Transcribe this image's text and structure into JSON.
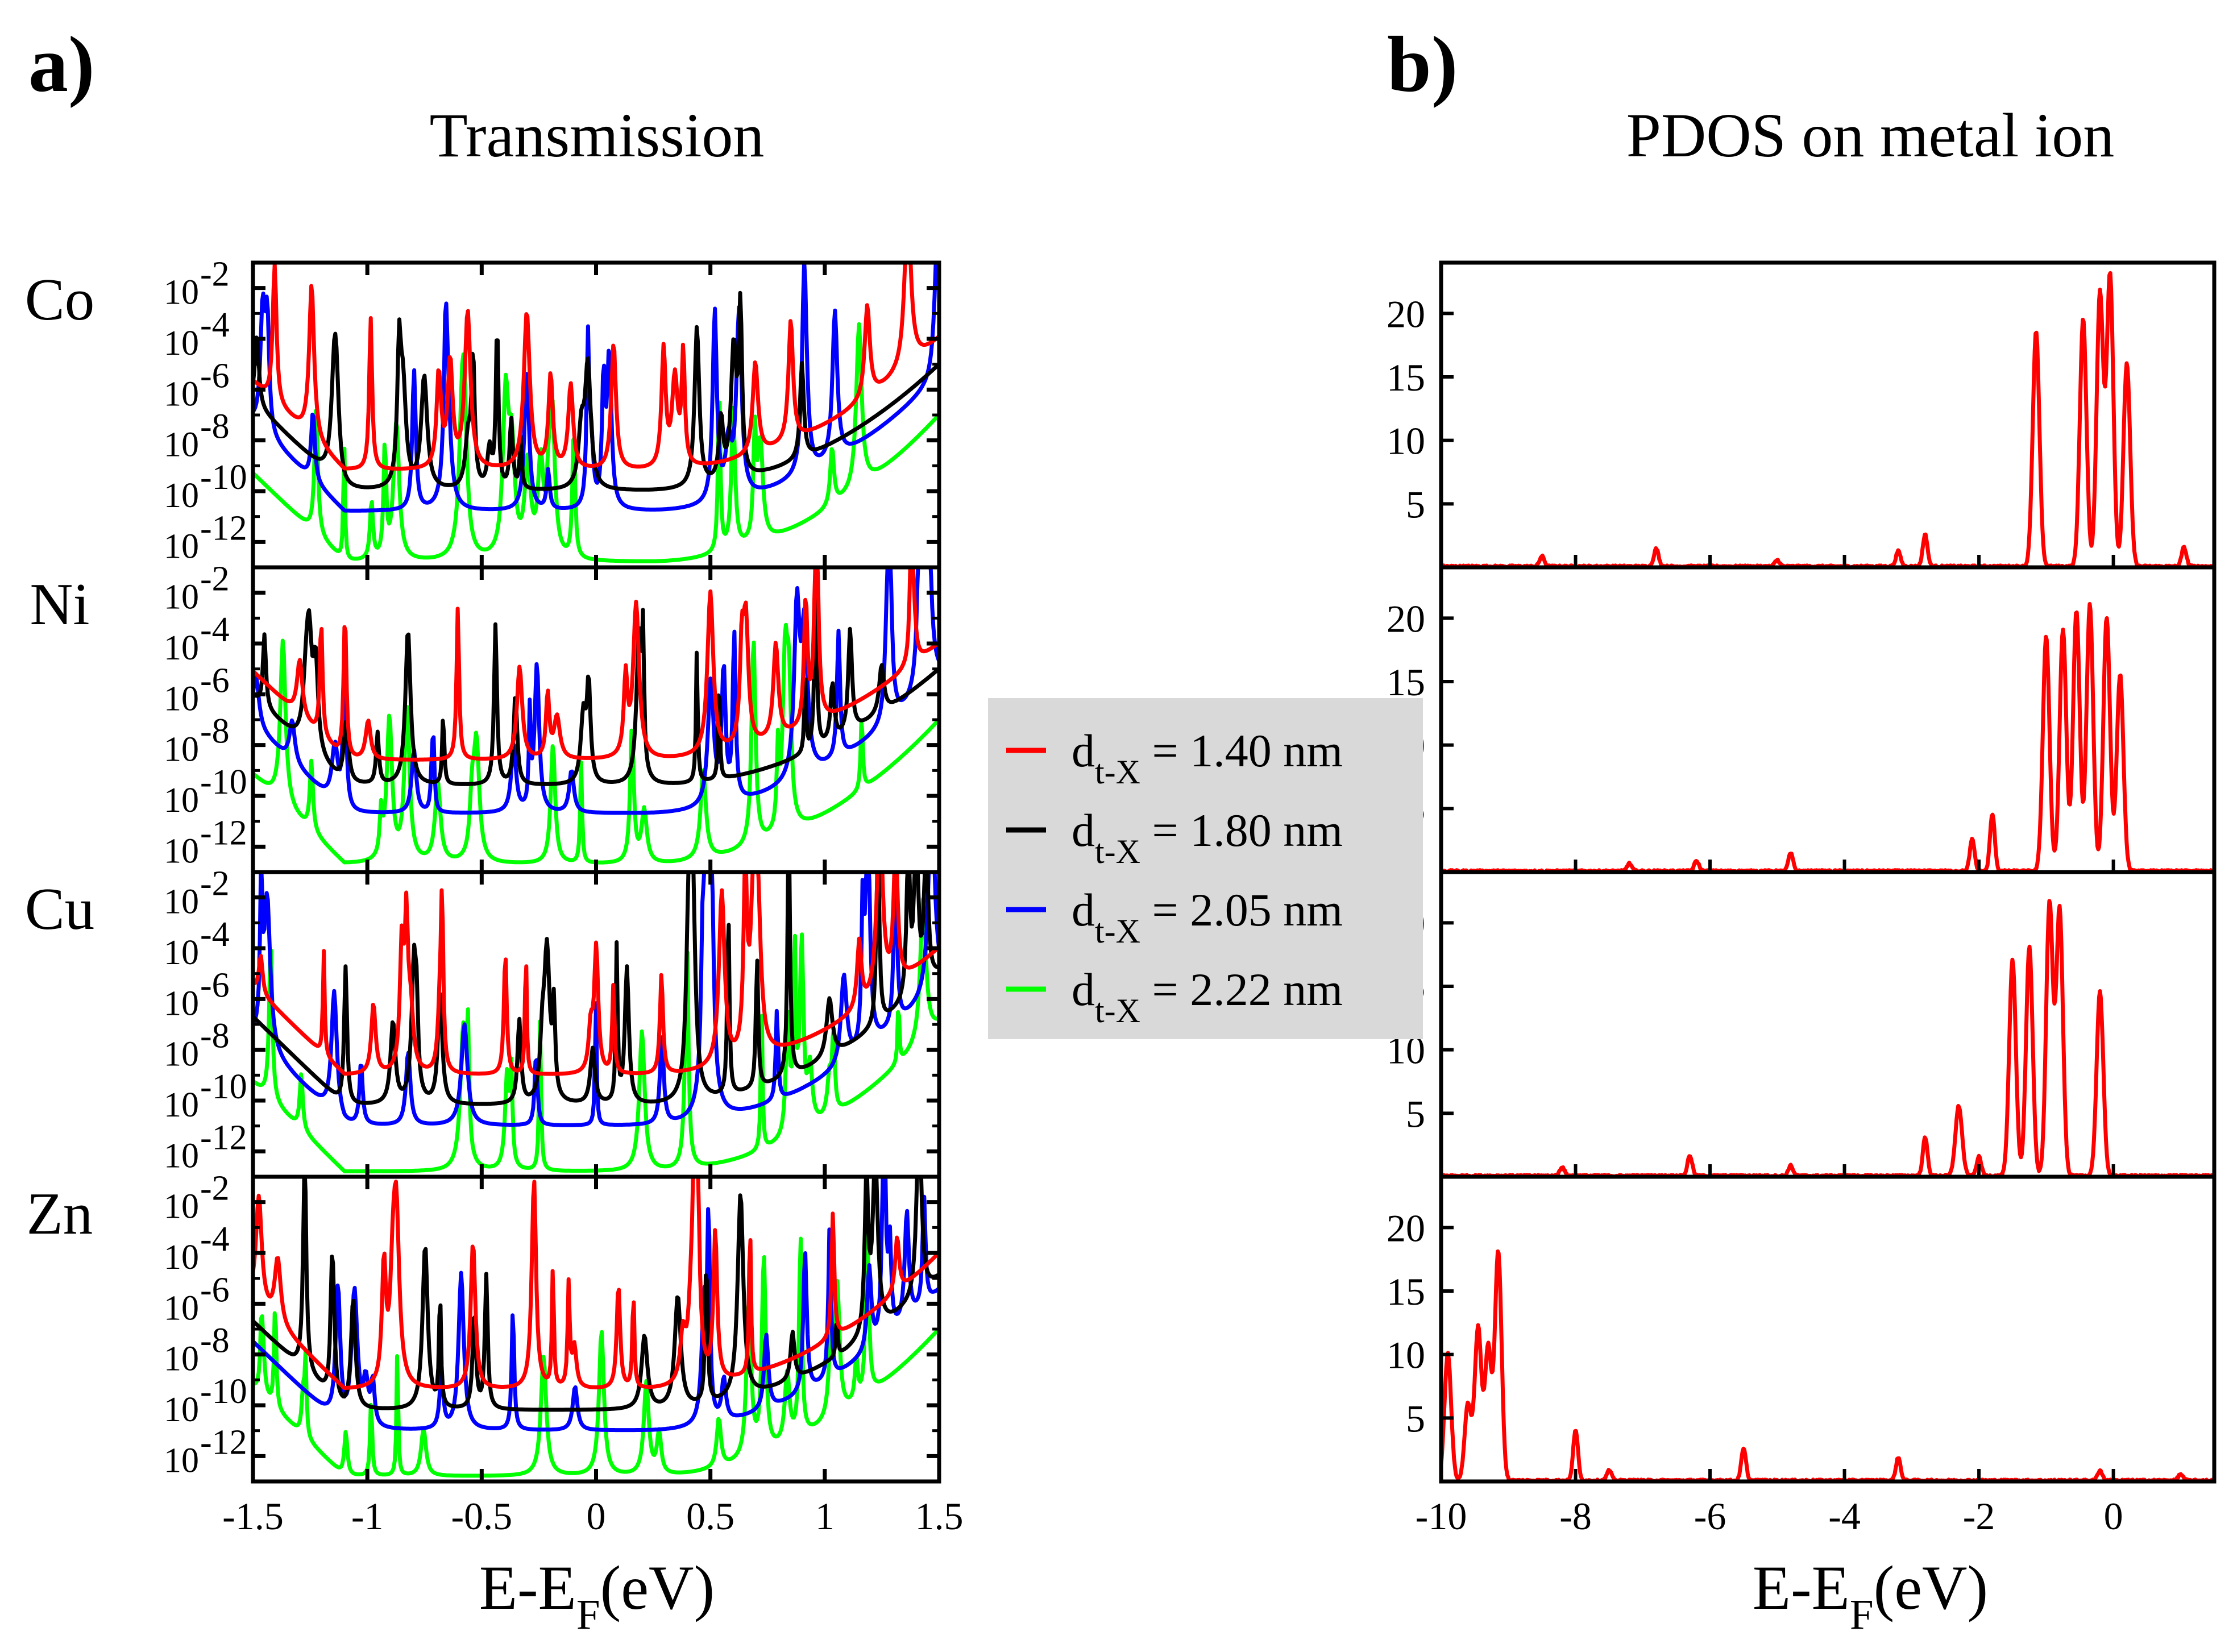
{
  "panel_labels": {
    "a": "a)",
    "b": "b)"
  },
  "chart_data": [
    {
      "type": "line",
      "panel": "a)",
      "title": "Transmission",
      "xlabel": "E-EF(eV)",
      "xlabel_parts": {
        "base": "E-E",
        "sub": "F",
        "tail": "(eV)"
      },
      "ylabel": "",
      "yscale": "log",
      "xlim": [
        -1.5,
        1.5
      ],
      "ylim_exponent": [
        -13,
        -1
      ],
      "x_ticks": [
        "-1.5",
        "-1",
        "-0.5",
        "0",
        "0.5",
        "1",
        "1.5"
      ],
      "y_tick_base": "10",
      "y_tick_exponents": [
        "-2",
        "-4",
        "-6",
        "-8",
        "-10",
        "-12"
      ],
      "rows": [
        "Co",
        "Ni",
        "Cu",
        "Zn"
      ],
      "series": [
        {
          "name": "d t-X = 1.40 nm",
          "color": "#ff0000",
          "baseline_exponent": {
            "Co": -9.2,
            "Ni": -8.6,
            "Cu": -9.0,
            "Zn": -9.4
          },
          "right_end_exponent": -4.0
        },
        {
          "name": "d t-X = 1.80 nm",
          "color": "#000000",
          "baseline_exponent": {
            "Co": -10.0,
            "Ni": -9.6,
            "Cu": -10.2,
            "Zn": -10.2
          },
          "right_end_exponent": -5.0
        },
        {
          "name": "d t-X = 2.05 nm",
          "color": "#0000ff",
          "baseline_exponent": {
            "Co": -10.8,
            "Ni": -10.7,
            "Cu": -11.0,
            "Zn": -11.0
          },
          "right_end_exponent": -5.5
        },
        {
          "name": "d t-X = 2.22 nm",
          "color": "#00ff00",
          "baseline_exponent": {
            "Co": -12.8,
            "Ni": -12.7,
            "Cu": -12.8,
            "Zn": -12.8
          },
          "right_end_exponent": -7.0
        }
      ]
    },
    {
      "type": "line",
      "panel": "b)",
      "title": "PDOS on metal ion",
      "xlabel": "E-EF(eV)",
      "xlabel_parts": {
        "base": "E-E",
        "sub": "F",
        "tail": "(eV)"
      },
      "ylabel": "",
      "xlim": [
        -10,
        1.5
      ],
      "ylim": [
        0,
        24
      ],
      "x_ticks": [
        "-10",
        "-8",
        "-6",
        "-4",
        "-2",
        "0"
      ],
      "y_ticks": [
        "5",
        "10",
        "15",
        "20"
      ],
      "rows": [
        "Co",
        "Ni",
        "Cu",
        "Zn"
      ],
      "series": [
        {
          "name": "Co",
          "color": "#ff0000",
          "peaks": [
            [
              -8.5,
              0.8
            ],
            [
              -6.8,
              1.4
            ],
            [
              -5.0,
              0.5
            ],
            [
              -3.2,
              1.2
            ],
            [
              -2.8,
              2.5
            ],
            [
              -1.15,
              18.5
            ],
            [
              -0.45,
              19.5
            ],
            [
              -0.2,
              21.5
            ],
            [
              -0.05,
              23.0
            ],
            [
              0.2,
              16.0
            ],
            [
              1.05,
              1.5
            ]
          ]
        },
        {
          "name": "Ni",
          "color": "#ff0000",
          "peaks": [
            [
              -7.2,
              0.6
            ],
            [
              -6.2,
              0.8
            ],
            [
              -4.8,
              1.4
            ],
            [
              -2.1,
              2.5
            ],
            [
              -1.8,
              4.5
            ],
            [
              -1.0,
              18.5
            ],
            [
              -0.75,
              19.0
            ],
            [
              -0.55,
              20.5
            ],
            [
              -0.35,
              21.0
            ],
            [
              -0.1,
              20.0
            ],
            [
              0.1,
              15.5
            ]
          ]
        },
        {
          "name": "Cu",
          "color": "#ff0000",
          "peaks": [
            [
              -8.2,
              0.7
            ],
            [
              -6.3,
              1.6
            ],
            [
              -4.8,
              0.8
            ],
            [
              -2.8,
              3.0
            ],
            [
              -2.3,
              5.5
            ],
            [
              -2.0,
              1.5
            ],
            [
              -1.5,
              17.0
            ],
            [
              -1.25,
              18.0
            ],
            [
              -0.95,
              21.5
            ],
            [
              -0.8,
              21.0
            ],
            [
              -0.2,
              14.5
            ]
          ]
        },
        {
          "name": "Zn",
          "color": "#ff0000",
          "peaks": [
            [
              -9.9,
              10.0
            ],
            [
              -9.6,
              6.0
            ],
            [
              -9.45,
              12.0
            ],
            [
              -9.3,
              10.5
            ],
            [
              -9.15,
              18.0
            ],
            [
              -8.0,
              4.0
            ],
            [
              -7.5,
              0.8
            ],
            [
              -5.5,
              2.5
            ],
            [
              -3.2,
              1.8
            ],
            [
              -0.2,
              0.8
            ],
            [
              1.0,
              0.5
            ]
          ]
        }
      ]
    }
  ],
  "legend": [
    {
      "label_base": "d",
      "label_sub": "t-X",
      "label_tail": " = 1.40 nm",
      "color": "#ff0000"
    },
    {
      "label_base": "d",
      "label_sub": "t-X",
      "label_tail": " = 1.80 nm",
      "color": "#000000"
    },
    {
      "label_base": "d",
      "label_sub": "t-X",
      "label_tail": " = 2.05 nm",
      "color": "#0000ff"
    },
    {
      "label_base": "d",
      "label_sub": "t-X",
      "label_tail": " = 2.22 nm",
      "color": "#00ff00"
    }
  ],
  "legend_bg": "#d9d9d9"
}
